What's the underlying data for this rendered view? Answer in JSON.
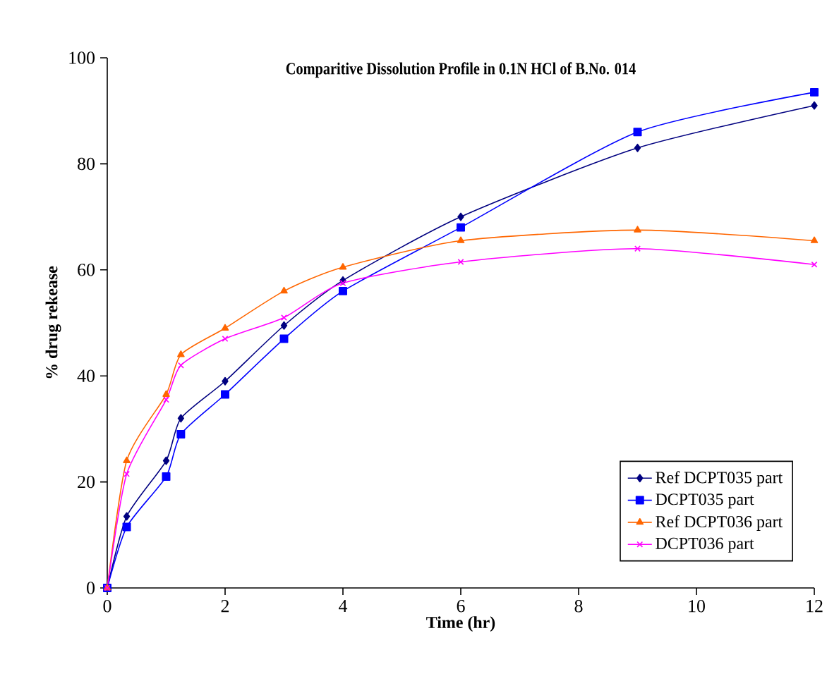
{
  "chart_data": {
    "type": "line",
    "title": "Comparitive Dissolution Profile in 0.1N HCl of B.No. 014",
    "xlabel": "Time (hr)",
    "ylabel": "% drug rekease",
    "x": [
      0,
      0.33,
      1,
      1.25,
      2,
      3,
      4,
      6,
      9,
      12
    ],
    "series": [
      {
        "name": "Ref DCPT035 part",
        "color": "#000080",
        "marker": "diamond",
        "values": [
          0,
          13.5,
          24,
          32,
          39,
          49.5,
          58,
          70,
          83,
          91
        ]
      },
      {
        "name": "DCPT035 part",
        "color": "#0000ff",
        "marker": "square",
        "values": [
          0,
          11.5,
          21,
          29,
          36.5,
          47,
          56,
          68,
          86,
          93.5
        ]
      },
      {
        "name": "Ref DCPT036 part",
        "color": "#ff6600",
        "marker": "triangle",
        "values": [
          0,
          24,
          36.5,
          44,
          49,
          56,
          60.5,
          65.5,
          67.5,
          65.5
        ]
      },
      {
        "name": "DCPT036 part",
        "color": "#ff00ff",
        "marker": "cross",
        "values": [
          0,
          21.5,
          35.5,
          42,
          47,
          51,
          57.5,
          61.5,
          64,
          61
        ]
      }
    ],
    "xlim": [
      0,
      12
    ],
    "xticks": [
      0,
      2,
      4,
      6,
      8,
      10,
      12
    ],
    "ylim": [
      0,
      100
    ],
    "yticks": [
      0,
      20,
      40,
      60,
      80,
      100
    ],
    "grid": false,
    "legend": "bottom right",
    "line_style": "solid"
  }
}
